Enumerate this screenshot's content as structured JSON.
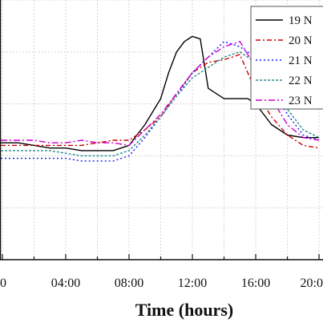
{
  "chart_data": {
    "type": "line",
    "title": "",
    "xlabel": "Time (hours)",
    "ylabel": "",
    "x_ticks": [
      "0",
      "04:00",
      "08:00",
      "12:00",
      "16:00",
      "20:0"
    ],
    "xlim": [
      -0.15,
      20.25
    ],
    "ylim": [
      0,
      100
    ],
    "grid": true,
    "legend_placement": "top-right",
    "series": [
      {
        "name": "19 N",
        "color": "#000000",
        "dash": "",
        "points": [
          [
            -0.1,
            45
          ],
          [
            1,
            45
          ],
          [
            2,
            44
          ],
          [
            3,
            43
          ],
          [
            4,
            43
          ],
          [
            5,
            42
          ],
          [
            6,
            42
          ],
          [
            7,
            42
          ],
          [
            8,
            44
          ],
          [
            9,
            52
          ],
          [
            10,
            62
          ],
          [
            10.5,
            72
          ],
          [
            11,
            80
          ],
          [
            11.5,
            84
          ],
          [
            12,
            86
          ],
          [
            12.5,
            85
          ],
          [
            13,
            66
          ],
          [
            14,
            62
          ],
          [
            15,
            62
          ],
          [
            15.5,
            62
          ],
          [
            16,
            60
          ],
          [
            17,
            52
          ],
          [
            18,
            48
          ],
          [
            19,
            47
          ],
          [
            20,
            47
          ]
        ]
      },
      {
        "name": "20 N",
        "color": "#cc0000",
        "dash": "6 3 2 3",
        "points": [
          [
            -0.1,
            44
          ],
          [
            1,
            44
          ],
          [
            2,
            44
          ],
          [
            3,
            44
          ],
          [
            4,
            44
          ],
          [
            5,
            44
          ],
          [
            6,
            45
          ],
          [
            7,
            46
          ],
          [
            8,
            46
          ],
          [
            9,
            50
          ],
          [
            10,
            55
          ],
          [
            11,
            64
          ],
          [
            12,
            72
          ],
          [
            13,
            76
          ],
          [
            14,
            77
          ],
          [
            15,
            79
          ],
          [
            16,
            65
          ],
          [
            17,
            55
          ],
          [
            18,
            48
          ],
          [
            19,
            44
          ],
          [
            20,
            43
          ]
        ]
      },
      {
        "name": "21 N",
        "color": "#1a1aff",
        "dash": "2 3",
        "points": [
          [
            -0.1,
            39
          ],
          [
            1,
            39
          ],
          [
            2,
            39
          ],
          [
            3,
            39
          ],
          [
            4,
            39
          ],
          [
            5,
            38
          ],
          [
            6,
            38
          ],
          [
            7,
            38
          ],
          [
            8,
            40
          ],
          [
            9,
            47
          ],
          [
            10,
            55
          ],
          [
            11,
            63
          ],
          [
            12,
            72
          ],
          [
            13,
            78
          ],
          [
            14,
            84
          ],
          [
            15,
            82
          ],
          [
            16,
            78
          ],
          [
            17,
            66
          ],
          [
            18,
            56
          ],
          [
            19,
            48
          ],
          [
            20,
            46
          ]
        ]
      },
      {
        "name": "22 N",
        "color": "#2a8a8a",
        "dash": "3 2",
        "points": [
          [
            -0.1,
            42
          ],
          [
            1,
            42
          ],
          [
            2,
            42
          ],
          [
            3,
            42
          ],
          [
            4,
            41
          ],
          [
            5,
            40
          ],
          [
            6,
            40
          ],
          [
            7,
            40
          ],
          [
            8,
            42
          ],
          [
            9,
            48
          ],
          [
            10,
            55
          ],
          [
            11,
            63
          ],
          [
            12,
            70
          ],
          [
            13,
            74
          ],
          [
            14,
            78
          ],
          [
            15,
            80
          ],
          [
            16,
            76
          ],
          [
            17,
            68
          ],
          [
            18,
            58
          ],
          [
            19,
            50
          ],
          [
            20,
            47
          ]
        ]
      },
      {
        "name": "23 N",
        "color": "#cc00cc",
        "dash": "8 3 2 3",
        "points": [
          [
            -0.1,
            46
          ],
          [
            1,
            46
          ],
          [
            2,
            46
          ],
          [
            3,
            45
          ],
          [
            4,
            45
          ],
          [
            5,
            46
          ],
          [
            6,
            45
          ],
          [
            7,
            45
          ],
          [
            8,
            44
          ],
          [
            9,
            50
          ],
          [
            10,
            56
          ],
          [
            11,
            64
          ],
          [
            12,
            72
          ],
          [
            13,
            78
          ],
          [
            14,
            82
          ],
          [
            15,
            84
          ],
          [
            16,
            74
          ],
          [
            17,
            62
          ],
          [
            18,
            52
          ],
          [
            19,
            47
          ],
          [
            20,
            46
          ]
        ]
      }
    ]
  }
}
